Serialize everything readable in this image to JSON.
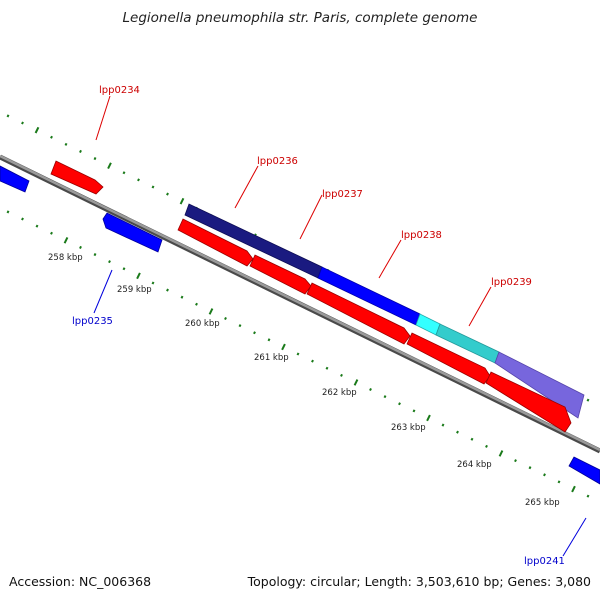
{
  "title": "Legionella pneumophila str. Paris, complete genome",
  "footer": {
    "accession": "Accession: NC_006368",
    "summary": "Topology: circular; Length: 3,503,610 bp; Genes: 3,080"
  },
  "colors": {
    "forward_gene": "#ff0000",
    "reverse_gene": "#0000ff",
    "forward_label": "#cc0000",
    "reverse_label": "#0000cc",
    "tick": "#1a7a1a",
    "backbone": "#808080",
    "operon": [
      "#1a1a80",
      "#0000ff",
      "#33ffff",
      "#33cccc",
      "#7766dd"
    ]
  },
  "ticks": [
    {
      "kbp": 258,
      "label": "258 kbp"
    },
    {
      "kbp": 259,
      "label": "259 kbp"
    },
    {
      "kbp": 260,
      "label": "260 kbp"
    },
    {
      "kbp": 261,
      "label": "261 kbp"
    },
    {
      "kbp": 262,
      "label": "262 kbp"
    },
    {
      "kbp": 263,
      "label": "263 kbp"
    },
    {
      "kbp": 264,
      "label": "264 kbp"
    },
    {
      "kbp": 265,
      "label": "265 kbp"
    }
  ],
  "gene_labels": [
    {
      "id": "lpp0234",
      "text": "lpp0234",
      "strand": "forward"
    },
    {
      "id": "lpp0235",
      "text": "lpp0235",
      "strand": "reverse"
    },
    {
      "id": "lpp0236",
      "text": "lpp0236",
      "strand": "forward"
    },
    {
      "id": "lpp0237",
      "text": "lpp0237",
      "strand": "forward"
    },
    {
      "id": "lpp0238",
      "text": "lpp0238",
      "strand": "forward"
    },
    {
      "id": "lpp0239",
      "text": "lpp0239",
      "strand": "forward"
    },
    {
      "id": "lpp0241",
      "text": "lpp0241",
      "strand": "reverse"
    }
  ]
}
